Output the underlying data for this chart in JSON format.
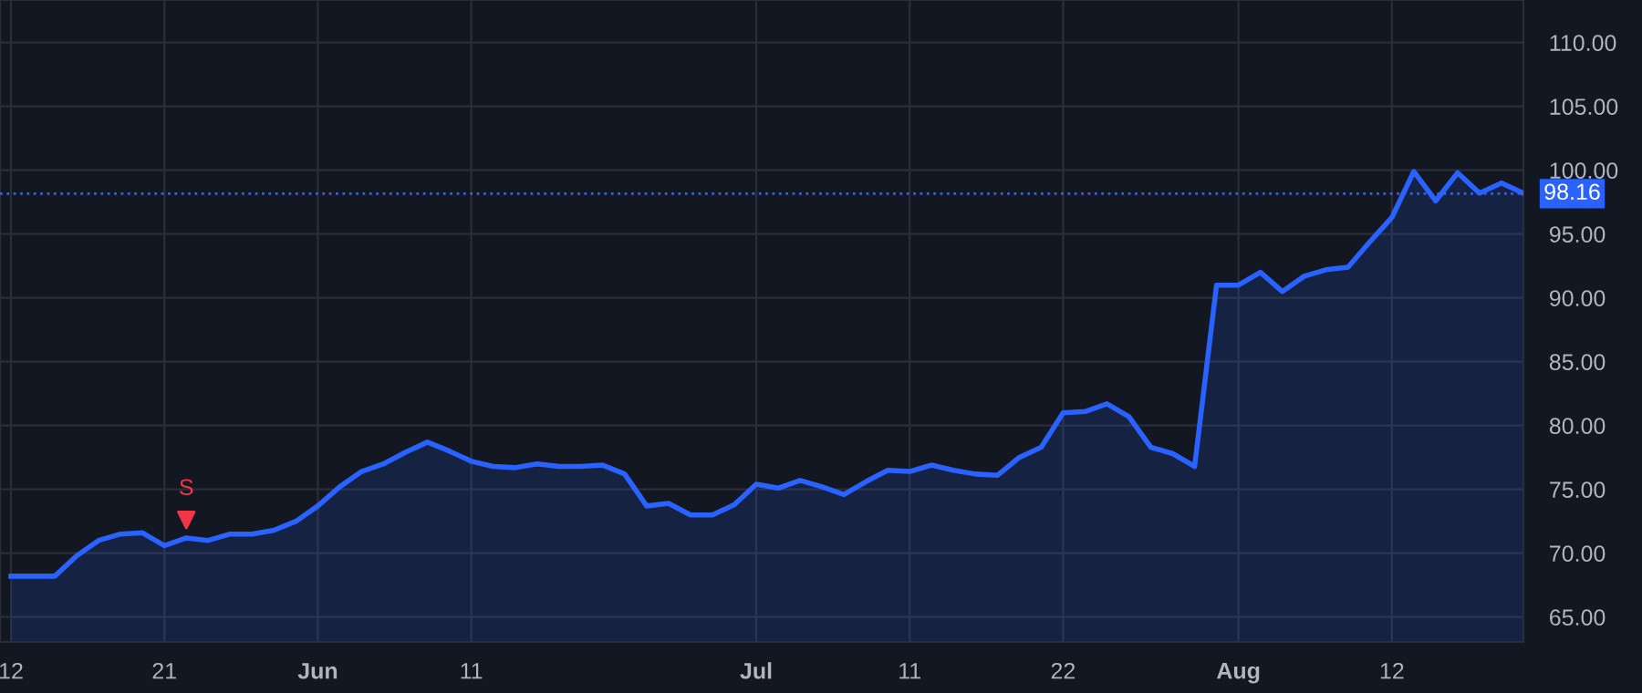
{
  "chart_data": {
    "type": "area",
    "categories": [
      "12",
      null,
      null,
      null,
      null,
      null,
      null,
      "21",
      null,
      null,
      null,
      null,
      null,
      null,
      "Jun",
      null,
      null,
      null,
      null,
      null,
      null,
      "11",
      null,
      null,
      null,
      null,
      null,
      null,
      null,
      null,
      null,
      null,
      null,
      null,
      "Jul",
      null,
      null,
      null,
      null,
      null,
      null,
      "11",
      null,
      null,
      null,
      null,
      null,
      null,
      "22",
      null,
      null,
      null,
      null,
      null,
      null,
      null,
      "Aug",
      null,
      null,
      null,
      null,
      null,
      null,
      "12",
      null,
      null,
      null,
      null,
      null,
      null
    ],
    "series": [
      {
        "color": "#2962ff",
        "values": [
          68.2,
          68.2,
          68.2,
          69.8,
          71.0,
          71.5,
          71.6,
          70.6,
          71.2,
          71.0,
          71.5,
          71.5,
          71.8,
          72.5,
          73.7,
          75.2,
          76.4,
          77.0,
          77.9,
          78.7,
          78.0,
          77.2,
          76.8,
          76.7,
          77.0,
          76.8,
          76.8,
          76.9,
          76.2,
          73.7,
          73.9,
          73.0,
          73.0,
          73.8,
          75.4,
          75.1,
          75.7,
          75.2,
          74.6,
          75.6,
          76.5,
          76.4,
          76.9,
          76.5,
          76.2,
          76.1,
          77.5,
          78.3,
          81.0,
          81.1,
          81.7,
          80.7,
          78.3,
          77.8,
          76.8,
          91.0,
          91.0,
          92.0,
          90.5,
          91.7,
          92.2,
          92.4,
          94.4,
          96.3,
          99.9,
          97.6,
          99.8,
          98.2,
          99.0,
          98.2
        ]
      },
      {
        "type": "scatter",
        "color": "#f23645",
        "marker": "triangle",
        "values": [
          null,
          null,
          null,
          null,
          null,
          null,
          null,
          null,
          72.6,
          null,
          null,
          null,
          null,
          null,
          null,
          null,
          null,
          null,
          null,
          null,
          null,
          null,
          null,
          null,
          null,
          null,
          null,
          null,
          null,
          null,
          null,
          null,
          null,
          null,
          null,
          null,
          null,
          null,
          null,
          null,
          null,
          null,
          null,
          null,
          null,
          null,
          null,
          null,
          null,
          null,
          null,
          null,
          null,
          null,
          null,
          null,
          null,
          null,
          null,
          null,
          null,
          null,
          null,
          null,
          null,
          null,
          null,
          null,
          null,
          null
        ],
        "value_labels": [
          null,
          null,
          null,
          null,
          null,
          null,
          null,
          null,
          "S",
          null,
          null,
          null,
          null,
          null,
          null,
          null,
          null,
          null,
          null,
          null,
          null,
          null,
          null,
          null,
          null,
          null,
          null,
          null,
          null,
          null,
          null,
          null,
          null,
          null,
          null,
          null,
          null,
          null,
          null,
          null,
          null,
          null,
          null,
          null,
          null,
          null,
          null,
          null,
          null,
          null,
          null,
          null,
          null,
          null,
          null,
          null,
          null,
          null,
          null,
          null,
          null,
          null,
          null,
          null,
          null,
          null,
          null,
          null,
          null,
          null
        ]
      }
    ],
    "ylim": [
      63.05,
      113.33
    ],
    "yticks": [
      {
        "value": 65,
        "label": "65.00"
      },
      {
        "value": 70,
        "label": "70.00"
      },
      {
        "value": 75,
        "label": "75.00"
      },
      {
        "value": 80,
        "label": "80.00"
      },
      {
        "value": 85,
        "label": "85.00"
      },
      {
        "value": 90,
        "label": "90.00"
      },
      {
        "value": 95,
        "label": "95.00"
      },
      {
        "value": 100,
        "label": "100.00"
      },
      {
        "value": 105,
        "label": "105.00"
      },
      {
        "value": 110,
        "label": "110.00"
      }
    ],
    "ref_lines": [
      {
        "axis": "y",
        "value": 98.16,
        "label": "98.16",
        "color": "#2962ff",
        "line_style": "dotted"
      }
    ],
    "grid": true,
    "legend": false,
    "marker": "none",
    "line_style": "solid"
  }
}
